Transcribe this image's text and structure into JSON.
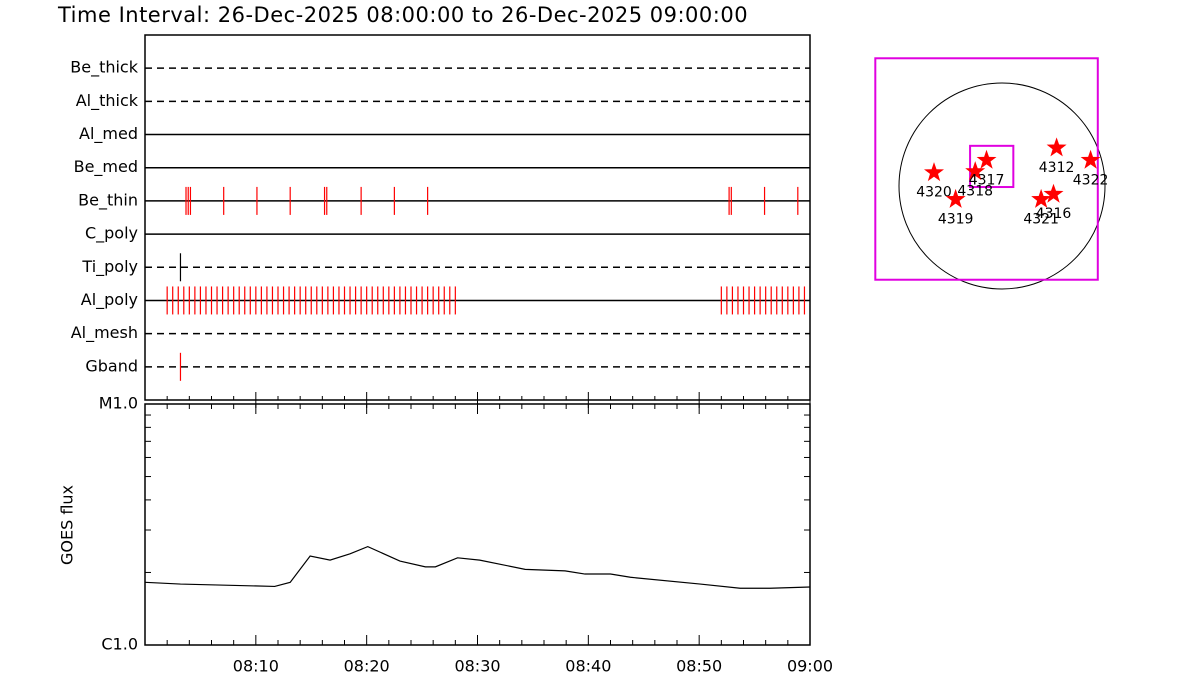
{
  "chart_data": [
    {
      "type": "timeline",
      "title": "Time Interval: 26-Dec-2025 08:00:00 to 26-Dec-2025 09:00:00",
      "categories": [
        "Be_thick",
        "Al_thick",
        "Al_med",
        "Be_med",
        "Be_thin",
        "C_poly",
        "Ti_poly",
        "Al_poly",
        "Al_mesh",
        "Gband"
      ],
      "line_styles": [
        "dashed",
        "dashed",
        "solid",
        "solid",
        "solid",
        "solid",
        "dashed",
        "solid",
        "dashed",
        "dashed"
      ],
      "colors": [
        "#ff0000",
        "#ff0000",
        "#ff0000",
        "#ff0000",
        "#ff0000",
        "#ff0000",
        "#000000",
        "#ff0000",
        "#ff0000",
        "#ff0000"
      ],
      "events": [
        [],
        [],
        [],
        [],
        [
          3.7,
          3.9,
          4.1,
          7.1,
          10.1,
          13.1,
          16.2,
          16.4,
          19.5,
          22.5,
          25.5,
          52.7,
          52.9,
          55.9,
          58.9
        ],
        [],
        [
          3.2
        ],
        [
          2,
          2.5,
          3,
          3.5,
          4,
          4.5,
          5,
          5.5,
          6,
          6.5,
          7,
          7.5,
          8,
          8.5,
          9,
          9.5,
          10,
          10.5,
          11,
          11.5,
          12,
          12.5,
          13,
          13.5,
          14,
          14.5,
          15,
          15.5,
          16,
          16.5,
          17,
          17.5,
          18,
          18.5,
          19,
          19.5,
          20,
          20.5,
          21,
          21.5,
          22,
          22.5,
          23,
          23.5,
          24,
          24.5,
          25,
          25.5,
          26,
          26.5,
          27,
          27.5,
          28,
          52,
          52.5,
          53,
          53.5,
          54,
          54.5,
          55,
          55.5,
          56,
          56.5,
          57,
          57.5,
          58,
          58.5,
          59,
          59.5
        ],
        [],
        [
          3.2
        ]
      ],
      "xlim": [
        0,
        60
      ]
    },
    {
      "type": "line",
      "ylabel": "GOES flux",
      "x": [
        0,
        3.2,
        11.7,
        13.1,
        14.9,
        16.7,
        18.5,
        20.1,
        23.0,
        25.3,
        26.2,
        28.2,
        30.2,
        34.3,
        37.9,
        39.7,
        42.0,
        43.8,
        50.1,
        53.7,
        56.4,
        60
      ],
      "values": [
        1.82e-06,
        1.79e-06,
        1.75e-06,
        1.82e-06,
        2.34e-06,
        2.25e-06,
        2.39e-06,
        2.56e-06,
        2.23e-06,
        2.11e-06,
        2.11e-06,
        2.3e-06,
        2.25e-06,
        2.06e-06,
        2.03e-06,
        1.97e-06,
        1.97e-06,
        1.91e-06,
        1.79e-06,
        1.72e-06,
        1.72e-06,
        1.74e-06
      ],
      "color": "#000000",
      "log_y": true,
      "xlim": [
        0,
        60
      ],
      "xticks": [
        {
          "value": 10,
          "label": "08:10"
        },
        {
          "value": 20,
          "label": "08:20"
        },
        {
          "value": 30,
          "label": "08:30"
        },
        {
          "value": 40,
          "label": "08:40"
        },
        {
          "value": 50,
          "label": "08:50"
        },
        {
          "value": 60,
          "label": "09:00"
        }
      ],
      "xminor": [
        2,
        4,
        6,
        8,
        12,
        14,
        16,
        18,
        22,
        24,
        26,
        28,
        32,
        34,
        36,
        38,
        42,
        44,
        46,
        48,
        52,
        54,
        56,
        58
      ],
      "ylim": [
        1e-06,
        1e-05
      ],
      "yticks": [
        {
          "value": 1e-06,
          "label": "C1.0"
        },
        {
          "value": 1e-05,
          "label": "M1.0"
        }
      ],
      "yminor": [
        2e-06,
        3e-06,
        4e-06,
        5e-06,
        6e-06,
        7e-06,
        8e-06,
        9e-06
      ]
    },
    {
      "type": "map",
      "fov": [
        -1.23,
        0.93,
        1.24,
        -0.91
      ],
      "subfov": [
        -0.31,
        0.11,
        0.39,
        -0.01
      ],
      "regions": [
        {
          "label": "4320",
          "x": -0.66,
          "y": 0.13
        },
        {
          "label": "4318",
          "x": -0.26,
          "y": 0.14
        },
        {
          "label": "4317",
          "x": -0.15,
          "y": 0.25
        },
        {
          "label": "4319",
          "x": -0.45,
          "y": -0.13
        },
        {
          "label": "4312",
          "x": 0.53,
          "y": 0.37
        },
        {
          "label": "4322",
          "x": 0.86,
          "y": 0.25
        },
        {
          "label": "4321",
          "x": 0.38,
          "y": -0.13
        },
        {
          "label": "4316",
          "x": 0.5,
          "y": -0.08
        }
      ]
    }
  ]
}
